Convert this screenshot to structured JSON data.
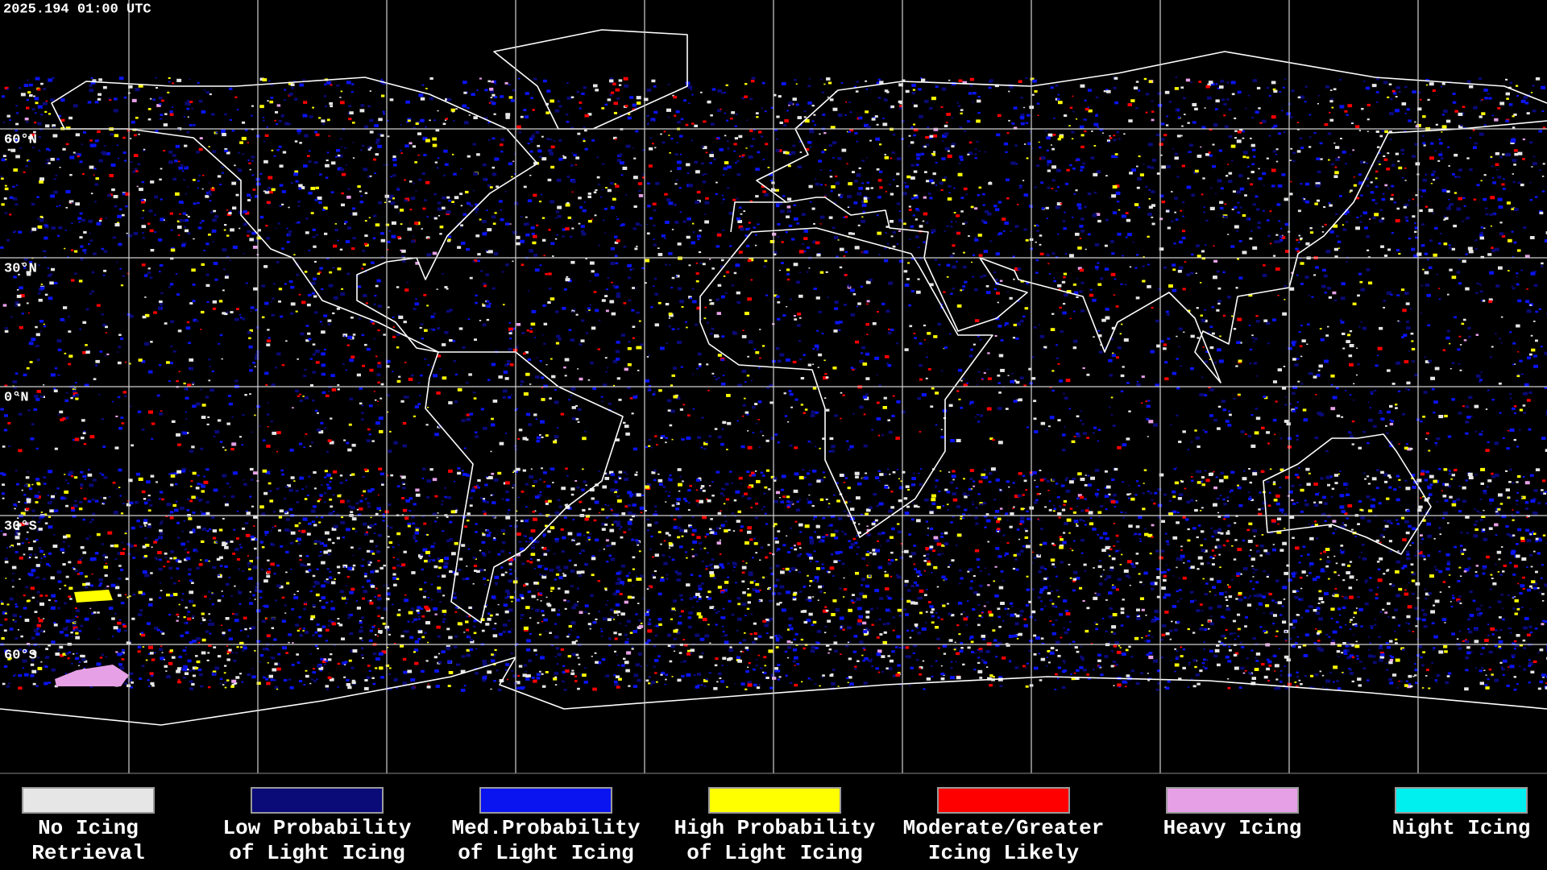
{
  "timestamp": "2025.194 01:00 UTC",
  "latitude_labels": [
    "60°N",
    "30°N",
    "0°N",
    "30°S",
    "60°S"
  ],
  "legend": [
    {
      "lines": [
        "No Icing",
        "Retrieval"
      ],
      "color": "#e6e6e6"
    },
    {
      "lines": [
        "Low Probability",
        "of Light Icing"
      ],
      "color": "#0a0a78"
    },
    {
      "lines": [
        "Med.Probability",
        "of Light Icing"
      ],
      "color": "#0a14f0"
    },
    {
      "lines": [
        "High Probability",
        "of Light Icing"
      ],
      "color": "#ffff00"
    },
    {
      "lines": [
        "Moderate/Greater",
        "Icing Likely"
      ],
      "color": "#ff0000"
    },
    {
      "lines": [
        "Heavy Icing"
      ],
      "color": "#e6a0e6"
    },
    {
      "lines": [
        "Night Icing"
      ],
      "color": "#00f0f0"
    }
  ]
}
